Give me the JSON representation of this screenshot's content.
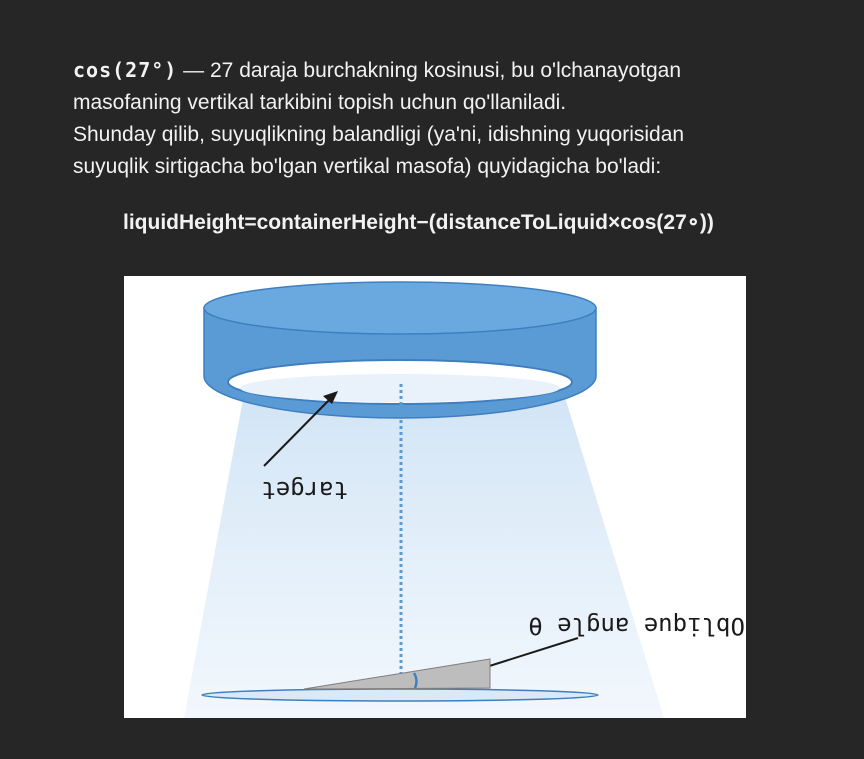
{
  "intro": {
    "code_term": "cos(27°)",
    "line1_rest": " — 27 daraja burchakning kosinusi, bu o'lchanayotgan",
    "line2": "masofaning vertikal tarkibini topish uchun qo'llaniladi.",
    "line3": "Shunday qilib, suyuqlikning balandligi (ya'ni, idishning yuqorisidan",
    "line4": "suyuqlik sirtigacha bo'lgan vertikal masofa) quyidagicha bo'ladi:"
  },
  "formula": "liquidHeight=containerHeight−(distanceToLiquid×cos(27∘))",
  "figure": {
    "label_target": "target",
    "label_angle": "Oblique angle θ",
    "colors": {
      "sensor_blue": "#5b9bd5",
      "sensor_dark": "#3f7fc0",
      "beam_light": "#cfe3f5",
      "dotted_line": "#5b9bd5",
      "wedge_gray": "#bdbdbd"
    }
  }
}
